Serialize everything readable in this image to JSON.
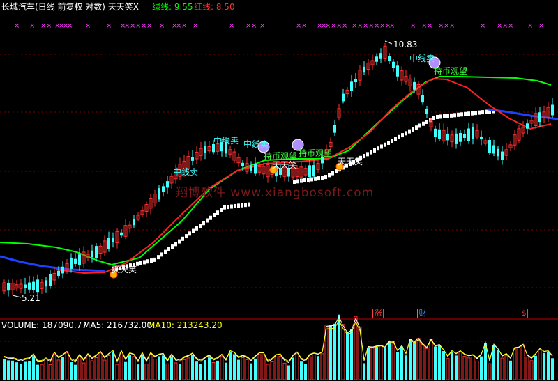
{
  "header": {
    "title": "长城汽车(日线 前复权 对数) 天天笑X",
    "green_label": "绿线: 9.55",
    "red_label": "红线: 8.50"
  },
  "chart": {
    "high_label": "10.83",
    "low_label": "5.21",
    "signals": {
      "sell": "中线卖",
      "watch": "持币观望",
      "smile": "天天笑"
    },
    "markers": {
      "zhang": "涨",
      "cai": "财",
      "dollar": "$"
    },
    "watermark": "翔博软件 www.xiangbosoft.com"
  },
  "volume_panel": {
    "volume": "VOLUME: 187090.77",
    "ma5": "MA5: 216732.00",
    "ma10": "MA10: 213243.20"
  },
  "colors": {
    "green": "#00ff00",
    "red": "#ff2020",
    "blue": "#2040ff",
    "up": "#ff3030",
    "down": "#40ffff",
    "magenta": "#ff40ff",
    "yellow": "#ffff00"
  }
}
